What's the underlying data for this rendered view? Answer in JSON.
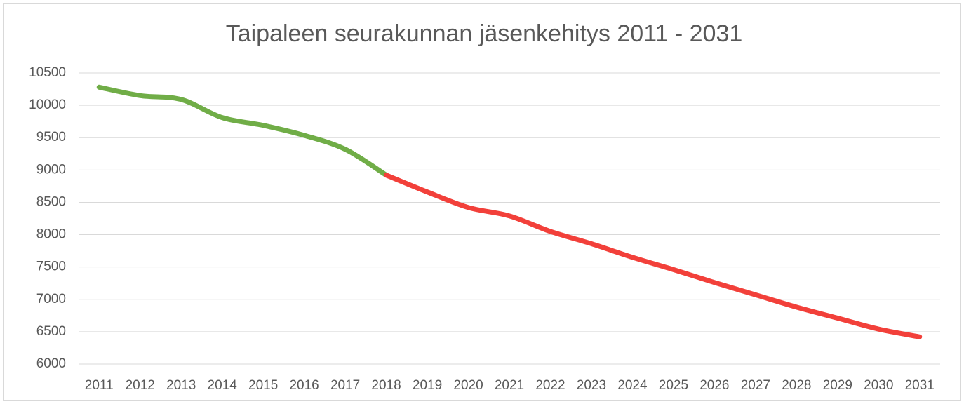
{
  "chart_data": {
    "type": "line",
    "title": "Taipaleen seurakunnan jäsenkehitys 2011 - 2031",
    "categories": [
      "2011",
      "2012",
      "2013",
      "2014",
      "2015",
      "2016",
      "2017",
      "2018",
      "2019",
      "2020",
      "2021",
      "2022",
      "2023",
      "2024",
      "2025",
      "2026",
      "2027",
      "2028",
      "2029",
      "2030",
      "2031"
    ],
    "series": [
      {
        "color": "#70ad47",
        "values": [
          10280,
          10150,
          10090,
          9810,
          9690,
          9535,
          9320,
          8920,
          null,
          null,
          null,
          null,
          null,
          null,
          null,
          null,
          null,
          null,
          null,
          null,
          null
        ]
      },
      {
        "color": "#f2403a",
        "values": [
          null,
          null,
          null,
          null,
          null,
          null,
          null,
          8920,
          8660,
          8420,
          8290,
          8050,
          7860,
          7650,
          7460,
          7260,
          7070,
          6880,
          6710,
          6540,
          6420
        ]
      }
    ],
    "ylim": [
      6000,
      10500
    ],
    "yticks": [
      6000,
      6500,
      7000,
      7500,
      8000,
      8500,
      9000,
      9500,
      10000,
      10500
    ],
    "grid": true,
    "smooth": true
  }
}
